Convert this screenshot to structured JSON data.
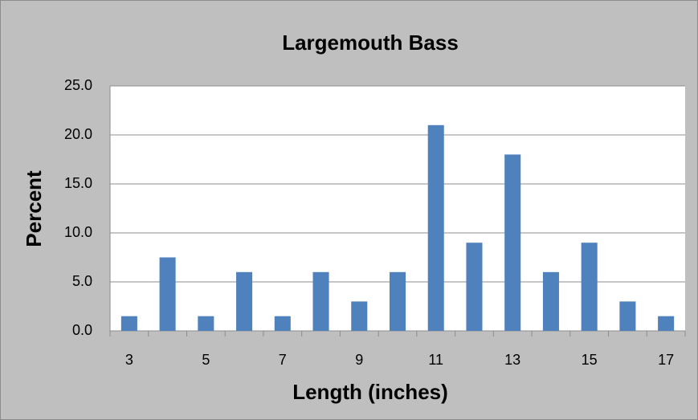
{
  "chart_data": {
    "type": "bar",
    "title": "Largemouth Bass",
    "x_label": "Length (inches)",
    "y_label": "Percent",
    "categories": [
      "3",
      null,
      "5",
      null,
      "7",
      null,
      "9",
      null,
      "11",
      null,
      "13",
      null,
      "15",
      null,
      "17"
    ],
    "values": [
      1.5,
      7.5,
      1.5,
      6,
      1.5,
      6,
      3,
      6,
      21,
      9,
      18,
      6,
      9,
      3,
      1.5
    ],
    "color": "#4f81bd",
    "ylim": [
      0,
      25
    ],
    "yticks": [
      {
        "value": 0,
        "label": "0.0"
      },
      {
        "value": 5,
        "label": "5.0"
      },
      {
        "value": 10,
        "label": "10.0"
      },
      {
        "value": 15,
        "label": "15.0"
      },
      {
        "value": 20,
        "label": "20.0"
      },
      {
        "value": 25,
        "label": "25.0"
      }
    ],
    "grid": true
  }
}
